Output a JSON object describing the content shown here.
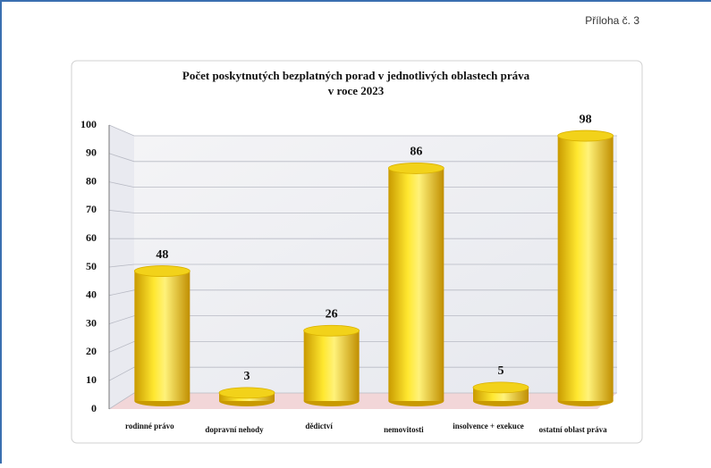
{
  "header": "Příloha č. 3",
  "chart_data": {
    "type": "bar3d",
    "title": [
      "Počet poskytnutých bezplatných porad v jednotlivých oblastech práva",
      "v roce 2023"
    ],
    "categories": [
      "rodinné právo",
      "dopravní nehody",
      "dědictví",
      "nemovitosti",
      "insolvence + exekuce",
      "ostatní oblast práva"
    ],
    "values": [
      48,
      3,
      26,
      86,
      5,
      98
    ],
    "color": "#f2d21a",
    "ylim": [
      0,
      100
    ],
    "yticks": [
      0,
      10,
      20,
      30,
      40,
      50,
      60,
      70,
      80,
      90,
      100
    ],
    "grid": true
  }
}
